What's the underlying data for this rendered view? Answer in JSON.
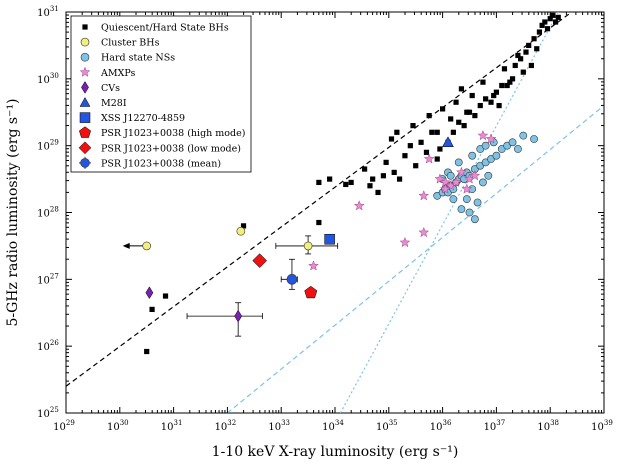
{
  "chart_data": {
    "type": "scatter",
    "xlabel": "1-10 keV X-ray luminosity (erg s⁻¹)",
    "ylabel": "5-GHz radio luminosity (erg s⁻¹)",
    "x_scale": "log",
    "y_scale": "log",
    "xlim_exp": [
      29,
      39
    ],
    "ylim_exp": [
      25,
      31
    ],
    "x_tick_labels": [
      "10",
      "10",
      "10",
      "10",
      "10",
      "10",
      "10",
      "10",
      "10",
      "10",
      "10"
    ],
    "x_tick_exponents": [
      "29",
      "30",
      "31",
      "32",
      "33",
      "34",
      "35",
      "36",
      "37",
      "38",
      "39"
    ],
    "y_tick_labels": [
      "10",
      "10",
      "10",
      "10",
      "10",
      "10",
      "10"
    ],
    "y_tick_exponents": [
      "25",
      "26",
      "27",
      "28",
      "29",
      "30",
      "31"
    ],
    "legend_position": "top-left",
    "legend": [
      {
        "label": "Quiescent/Hard State BHs",
        "marker": "square",
        "color": "#000000"
      },
      {
        "label": "Cluster BHs",
        "marker": "circle",
        "color": "#f4ee7a"
      },
      {
        "label": "Hard state NSs",
        "marker": "circle",
        "color": "#7ec3e5"
      },
      {
        "label": "AMXPs",
        "marker": "star",
        "color": "#e88bd0"
      },
      {
        "label": "CVs",
        "marker": "diamond",
        "color": "#7a1fb0"
      },
      {
        "label": "M28I",
        "marker": "triangle",
        "color": "#2255e0"
      },
      {
        "label": "XSS J12270-4859",
        "marker": "square",
        "color": "#2255e0"
      },
      {
        "label": "PSR J1023+0038 (high mode)",
        "marker": "pentagon",
        "color": "#ee1111"
      },
      {
        "label": "PSR J1023+0038 (low mode)",
        "marker": "diamond",
        "color": "#ee1111"
      },
      {
        "label": "PSR J1023+0038 (mean)",
        "marker": "circle-err",
        "color": "#2255e0"
      }
    ],
    "lines": [
      {
        "name": "BH correlation",
        "style": "dashed",
        "color": "#000000",
        "points": [
          [
            29.0,
            25.4
          ],
          [
            38.4,
            31.0
          ]
        ]
      },
      {
        "name": "NS correlation (dashed)",
        "style": "dashed",
        "color": "#7ec3e5",
        "points": [
          [
            32.0,
            25.0
          ],
          [
            39.0,
            29.6
          ]
        ]
      },
      {
        "name": "NS correlation (dotted)",
        "style": "dotted",
        "color": "#7ec3e5",
        "points": [
          [
            34.1,
            25.0
          ],
          [
            38.15,
            31.0
          ]
        ]
      }
    ],
    "series": [
      {
        "name": "Quiescent/Hard State BHs",
        "points": [
          [
            30.5,
            25.92
          ],
          [
            30.6,
            26.55
          ],
          [
            30.85,
            26.75
          ],
          [
            32.3,
            27.8
          ],
          [
            33.7,
            27.85
          ],
          [
            34.2,
            28.42
          ],
          [
            34.3,
            28.45
          ],
          [
            33.7,
            28.45
          ],
          [
            33.9,
            28.5
          ],
          [
            34.55,
            28.65
          ],
          [
            34.7,
            28.5
          ],
          [
            34.9,
            28.55
          ],
          [
            35.1,
            28.6
          ],
          [
            35.2,
            28.5
          ],
          [
            34.95,
            28.75
          ],
          [
            35.3,
            28.85
          ],
          [
            35.5,
            28.7
          ],
          [
            35.7,
            28.9
          ],
          [
            35.9,
            28.8
          ],
          [
            35.4,
            29.0
          ],
          [
            35.6,
            29.05
          ],
          [
            35.8,
            29.2
          ],
          [
            35.05,
            29.1
          ],
          [
            35.15,
            29.2
          ],
          [
            35.9,
            29.2
          ],
          [
            36.1,
            29.05
          ],
          [
            36.2,
            29.2
          ],
          [
            36.3,
            29.35
          ],
          [
            36.4,
            29.3
          ],
          [
            36.5,
            29.5
          ],
          [
            36.6,
            29.45
          ],
          [
            36.7,
            29.6
          ],
          [
            36.8,
            29.7
          ],
          [
            36.9,
            29.65
          ],
          [
            37.0,
            29.8
          ],
          [
            37.05,
            29.6
          ],
          [
            37.1,
            29.9
          ],
          [
            37.2,
            29.9
          ],
          [
            37.3,
            30.0
          ],
          [
            37.35,
            30.2
          ],
          [
            37.45,
            30.3
          ],
          [
            37.5,
            30.1
          ],
          [
            37.55,
            30.4
          ],
          [
            37.6,
            30.5
          ],
          [
            37.7,
            30.6
          ],
          [
            37.75,
            30.45
          ],
          [
            37.8,
            30.7
          ],
          [
            37.85,
            30.8
          ],
          [
            37.9,
            30.85
          ],
          [
            37.95,
            30.75
          ],
          [
            38.0,
            30.9
          ],
          [
            38.05,
            30.95
          ],
          [
            38.1,
            30.85
          ],
          [
            38.15,
            30.92
          ],
          [
            36.0,
            29.55
          ],
          [
            36.25,
            29.65
          ],
          [
            35.75,
            29.45
          ],
          [
            36.55,
            29.75
          ],
          [
            36.75,
            29.95
          ],
          [
            37.15,
            30.15
          ],
          [
            37.4,
            30.35
          ],
          [
            36.35,
            29.85
          ],
          [
            36.15,
            29.4
          ],
          [
            35.45,
            29.3
          ],
          [
            35.95,
            28.95
          ],
          [
            34.8,
            28.3
          ],
          [
            34.65,
            28.4
          ],
          [
            36.45,
            29.5
          ],
          [
            36.95,
            29.75
          ],
          [
            37.25,
            29.95
          ],
          [
            37.65,
            30.2
          ]
        ]
      },
      {
        "name": "Cluster BHs",
        "points": [
          [
            30.5,
            27.5
          ],
          [
            32.25,
            27.72
          ],
          [
            33.5,
            27.5
          ]
        ],
        "xerr": [
          [
            null,
            null
          ],
          [
            null,
            null
          ],
          [
            0.6,
            0.55
          ]
        ],
        "yerr": [
          [
            null,
            null
          ],
          [
            null,
            null
          ],
          [
            0.12,
            0.15
          ]
        ],
        "upper_limit_x": [
          true,
          false,
          false
        ]
      },
      {
        "name": "Hard state NSs",
        "points": [
          [
            35.9,
            28.25
          ],
          [
            36.0,
            28.3
          ],
          [
            36.05,
            28.35
          ],
          [
            36.1,
            28.3
          ],
          [
            36.15,
            28.4
          ],
          [
            36.2,
            28.35
          ],
          [
            36.25,
            28.45
          ],
          [
            36.3,
            28.5
          ],
          [
            36.35,
            28.55
          ],
          [
            36.4,
            28.5
          ],
          [
            36.45,
            28.6
          ],
          [
            36.5,
            28.55
          ],
          [
            36.6,
            28.65
          ],
          [
            36.7,
            28.7
          ],
          [
            36.8,
            28.75
          ],
          [
            36.9,
            28.8
          ],
          [
            37.0,
            28.85
          ],
          [
            37.1,
            28.95
          ],
          [
            37.2,
            29.0
          ],
          [
            37.3,
            29.05
          ],
          [
            37.5,
            29.15
          ],
          [
            37.7,
            29.1
          ],
          [
            36.7,
            28.95
          ],
          [
            36.8,
            29.0
          ],
          [
            36.95,
            29.05
          ],
          [
            36.55,
            28.85
          ],
          [
            36.3,
            28.75
          ],
          [
            36.1,
            28.6
          ],
          [
            36.0,
            28.5
          ],
          [
            36.2,
            28.2
          ],
          [
            36.35,
            28.05
          ],
          [
            36.6,
            27.9
          ],
          [
            36.55,
            28.35
          ],
          [
            36.45,
            28.2
          ],
          [
            36.75,
            28.45
          ],
          [
            36.85,
            28.55
          ],
          [
            36.15,
            28.55
          ],
          [
            36.65,
            28.15
          ],
          [
            37.4,
            28.95
          ],
          [
            36.5,
            28.0
          ]
        ]
      },
      {
        "name": "AMXPs",
        "points": [
          [
            33.6,
            27.2
          ],
          [
            34.45,
            28.1
          ],
          [
            35.3,
            27.55
          ],
          [
            35.65,
            27.7
          ],
          [
            35.75,
            28.8
          ],
          [
            35.95,
            28.5
          ],
          [
            36.05,
            28.45
          ],
          [
            36.15,
            28.4
          ],
          [
            36.25,
            28.45
          ],
          [
            36.35,
            28.6
          ],
          [
            36.5,
            28.5
          ],
          [
            36.6,
            28.55
          ],
          [
            36.75,
            29.15
          ],
          [
            36.9,
            29.1
          ],
          [
            35.65,
            28.25
          ],
          [
            36.05,
            28.35
          ],
          [
            36.45,
            28.35
          ]
        ]
      },
      {
        "name": "CVs",
        "points": [
          [
            30.55,
            26.8
          ],
          [
            32.2,
            26.45
          ]
        ],
        "xerr": [
          [
            null,
            null
          ],
          [
            0.95,
            0.45
          ]
        ],
        "yerr": [
          [
            null,
            null
          ],
          [
            0.3,
            0.2
          ]
        ]
      },
      {
        "name": "M28I",
        "points": [
          [
            36.1,
            29.05
          ]
        ]
      },
      {
        "name": "XSS J12270-4859",
        "points": [
          [
            33.9,
            27.6
          ]
        ]
      },
      {
        "name": "PSR J1023+0038 (high mode)",
        "points": [
          [
            33.55,
            26.8
          ]
        ]
      },
      {
        "name": "PSR J1023+0038 (low mode)",
        "points": [
          [
            32.6,
            27.28
          ]
        ]
      },
      {
        "name": "PSR J1023+0038 (mean)",
        "points": [
          [
            33.2,
            27.0
          ]
        ],
        "xerr": [
          [
            0.2,
            0.1
          ]
        ],
        "yerr": [
          [
            0.15,
            0.3
          ]
        ]
      }
    ]
  }
}
